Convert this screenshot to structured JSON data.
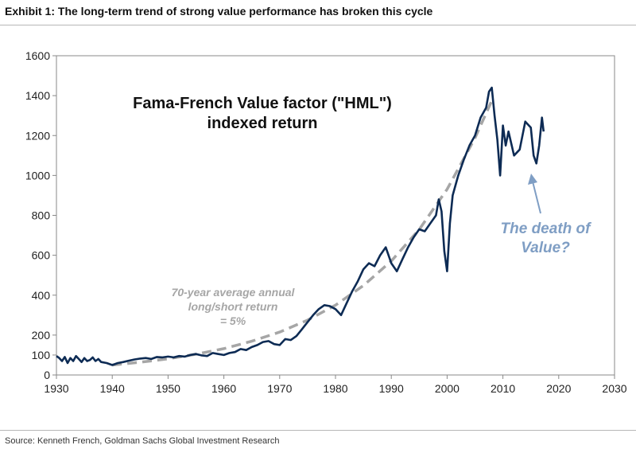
{
  "header": {
    "exhibit_title": "Exhibit 1: The long-term trend of strong value performance has broken this cycle"
  },
  "footer": {
    "source": "Source: Kenneth French, Goldman Sachs Global Investment Research"
  },
  "colors": {
    "series": "#0d2b54",
    "trend": "#a6a6a6",
    "annotation": "#7f9ec4",
    "axis": "#888888"
  },
  "chart_data": {
    "type": "line",
    "title": "Fama-French Value factor (\"HML\")",
    "subtitle": "indexed return",
    "xlabel": "",
    "ylabel": "",
    "xlim": [
      1930,
      2030
    ],
    "ylim": [
      0,
      1600
    ],
    "x_ticks": [
      "1930",
      "1940",
      "1950",
      "1960",
      "1970",
      "1980",
      "1990",
      "2000",
      "2010",
      "2020",
      "2030"
    ],
    "y_ticks": [
      "0",
      "100",
      "200",
      "400",
      "600",
      "800",
      "1000",
      "1200",
      "1400",
      "1600"
    ],
    "grid": false,
    "series": [
      {
        "name": "HML indexed return",
        "x": [
          1930,
          1930.5,
          1931,
          1931.5,
          1932,
          1932.5,
          1933,
          1933.5,
          1934,
          1934.5,
          1935,
          1935.5,
          1936,
          1936.5,
          1937,
          1937.5,
          1938,
          1939,
          1940,
          1941,
          1942,
          1943,
          1944,
          1945,
          1946,
          1947,
          1948,
          1949,
          1950,
          1951,
          1952,
          1953,
          1954,
          1955,
          1956,
          1957,
          1958,
          1959,
          1960,
          1961,
          1962,
          1963,
          1964,
          1965,
          1966,
          1967,
          1968,
          1969,
          1970,
          1971,
          1972,
          1973,
          1974,
          1975,
          1976,
          1977,
          1978,
          1979,
          1980,
          1981,
          1982,
          1983,
          1984,
          1985,
          1986,
          1987,
          1988,
          1989,
          1990,
          1991,
          1992,
          1993,
          1994,
          1995,
          1996,
          1997,
          1998,
          1998.5,
          1999,
          1999.5,
          2000,
          2000.5,
          2001,
          2002,
          2003,
          2004,
          2005,
          2006,
          2007,
          2007.5,
          2008,
          2008.5,
          2009,
          2009.5,
          2010,
          2010.5,
          2011,
          2012,
          2013,
          2014,
          2015,
          2015.5,
          2016,
          2016.5,
          2017,
          2017.3
        ],
        "values": [
          95,
          85,
          70,
          90,
          60,
          85,
          70,
          95,
          80,
          65,
          85,
          70,
          75,
          88,
          70,
          80,
          65,
          60,
          50,
          60,
          65,
          72,
          78,
          82,
          85,
          80,
          90,
          88,
          92,
          88,
          95,
          92,
          100,
          105,
          98,
          95,
          110,
          105,
          100,
          110,
          115,
          130,
          125,
          140,
          150,
          165,
          170,
          155,
          150,
          180,
          175,
          195,
          230,
          265,
          300,
          330,
          350,
          345,
          330,
          300,
          360,
          420,
          470,
          530,
          560,
          545,
          600,
          640,
          560,
          520,
          580,
          640,
          690,
          730,
          720,
          760,
          800,
          880,
          820,
          620,
          520,
          760,
          900,
          1000,
          1080,
          1150,
          1200,
          1290,
          1340,
          1420,
          1440,
          1300,
          1180,
          1000,
          1250,
          1150,
          1220,
          1100,
          1130,
          1270,
          1240,
          1100,
          1060,
          1150,
          1290,
          1220
        ]
      },
      {
        "name": "70-year average annual long/short return = 5%",
        "x": [
          1940,
          1945,
          1950,
          1955,
          1960,
          1965,
          1970,
          1975,
          1980,
          1985,
          1990,
          1995,
          2000,
          2005,
          2008
        ],
        "values": [
          50,
          64,
          81,
          104,
          132,
          169,
          215,
          275,
          350,
          448,
          571,
          729,
          931,
          1188,
          1375
        ]
      }
    ],
    "annotations": [
      {
        "text_lines": [
          "70-year average annual",
          "long/short return",
          "= 5%"
        ]
      },
      {
        "text_lines": [
          "The death of",
          "Value?"
        ]
      }
    ]
  }
}
